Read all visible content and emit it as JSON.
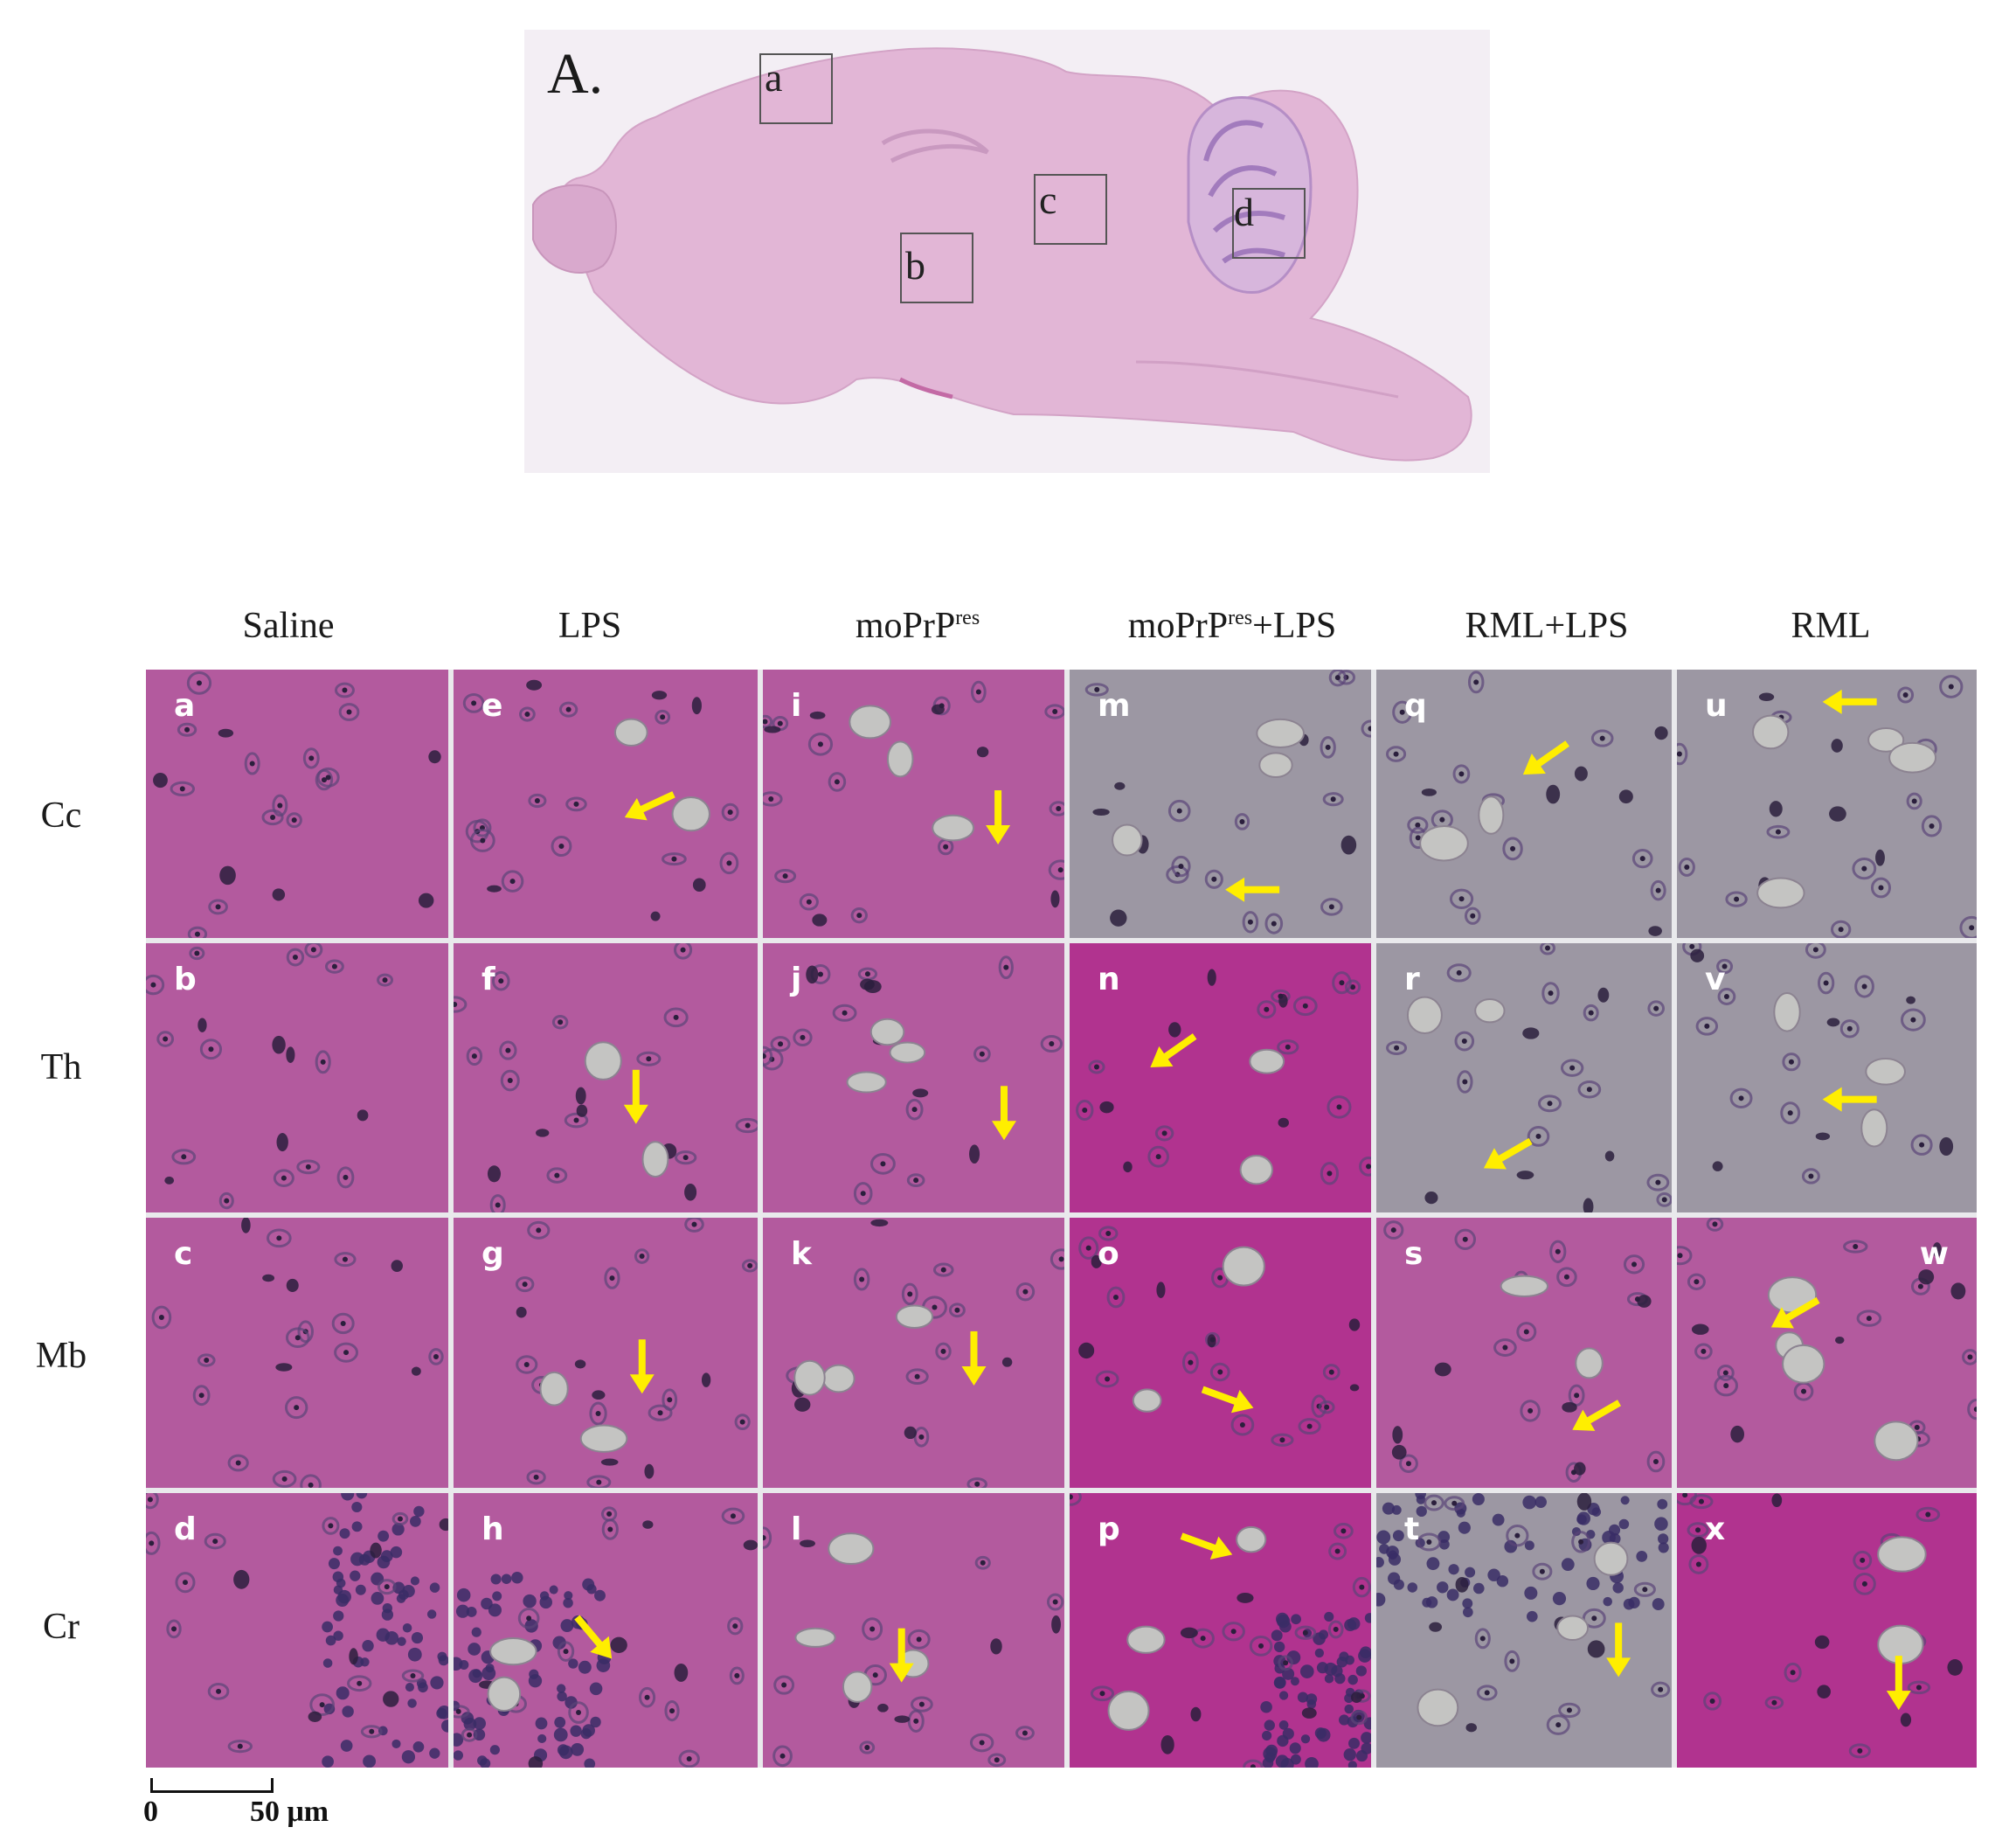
{
  "overview": {
    "label": "A.",
    "boxes": [
      "a",
      "b",
      "c",
      "d"
    ]
  },
  "columns": [
    {
      "text": "Saline",
      "sup": "",
      "suffix": ""
    },
    {
      "text": "LPS",
      "sup": "",
      "suffix": ""
    },
    {
      "text": "moPrP",
      "sup": "res",
      "suffix": ""
    },
    {
      "text": "moPrP",
      "sup": "res",
      "suffix": "+LPS"
    },
    {
      "text": "RML+LPS",
      "sup": "",
      "suffix": ""
    },
    {
      "text": "RML",
      "sup": "",
      "suffix": ""
    }
  ],
  "rows": [
    "Cc",
    "Th",
    "Mb",
    "Cr"
  ],
  "panels": [
    [
      "a",
      "b",
      "c",
      "d"
    ],
    [
      "e",
      "f",
      "g",
      "h"
    ],
    [
      "i",
      "j",
      "k",
      "l"
    ],
    [
      "m",
      "n",
      "o",
      "p"
    ],
    [
      "q",
      "r",
      "s",
      "t"
    ],
    [
      "u",
      "v",
      "w",
      "x"
    ]
  ],
  "scale": {
    "zero": "0",
    "length": "50 μm"
  },
  "colors": {
    "tissue_pink": "#b35a9e",
    "tissue_gray": "#9c97a3",
    "vacuole": "#c4c4c2",
    "nucleus": "#2b1f3d",
    "arrow": "#ffee00"
  }
}
